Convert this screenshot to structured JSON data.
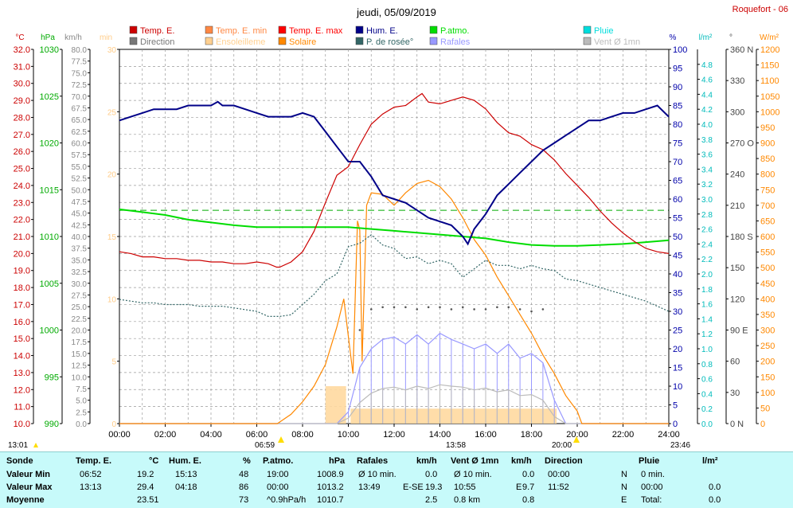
{
  "header": {
    "title": "jeudi, 05/09/2019",
    "station": "Roquefort - 06"
  },
  "legend": [
    {
      "label": "Temp. E.",
      "color": "#cc0000"
    },
    {
      "label": "Direction",
      "color": "#777777"
    },
    {
      "label": "Temp. E. min",
      "color": "#ff8844"
    },
    {
      "label": "Ensoleilleme",
      "color": "#ffd090"
    },
    {
      "label": "Temp. E. max",
      "color": "#ff0000"
    },
    {
      "label": "Solaire",
      "color": "#ff8800"
    },
    {
      "label": "Hum. E.",
      "color": "#000088"
    },
    {
      "label": "P. de rosée°",
      "color": "#336666"
    },
    {
      "label": "P.atmo.",
      "color": "#00dd00"
    },
    {
      "label": "Rafales",
      "color": "#9999ff"
    },
    {
      "label": "Pluie",
      "color": "#00dddd"
    },
    {
      "label": "Vent Ø 1mn",
      "color": "#bbbbbb"
    }
  ],
  "axes_units": {
    "temp": "°C",
    "pressure": "hPa",
    "wind": "km/h",
    "min": "min",
    "humidity": "%",
    "rain": "l/m²",
    "direction": "°",
    "solar": "W/m²"
  },
  "marker_labels": {
    "start": "13:01",
    "sunrise": "06:59",
    "noon": "13:58",
    "sunset": "20:00",
    "end": "23:46"
  },
  "chart_data": {
    "type": "line",
    "x_label_ticks": [
      "00:00",
      "02:00",
      "04:00",
      "06:00",
      "08:00",
      "10:00",
      "12:00",
      "14:00",
      "16:00",
      "18:00",
      "20:00",
      "22:00",
      "24:00"
    ],
    "x_range_hours": [
      0,
      24
    ],
    "axes": {
      "temp": {
        "range": [
          10,
          32
        ],
        "ticks": [
          "10.0",
          "11.0",
          "12.0",
          "13.0",
          "14.0",
          "15.0",
          "16.0",
          "17.0",
          "18.0",
          "19.0",
          "20.0",
          "21.0",
          "22.0",
          "23.0",
          "24.0",
          "25.0",
          "26.0",
          "27.0",
          "28.0",
          "29.0",
          "30.0",
          "31.0",
          "32.0"
        ],
        "color": "#cc0000"
      },
      "pressure": {
        "range": [
          990,
          1030
        ],
        "ticks": [
          "990",
          "995",
          "1000",
          "1005",
          "1010",
          "1015",
          "1020",
          "1025",
          "1030"
        ],
        "color": "#00aa00"
      },
      "wind": {
        "range": [
          0,
          80
        ],
        "ticks": [
          "0.0",
          "2.5",
          "5.0",
          "7.5",
          "10.0",
          "12.5",
          "15.0",
          "17.5",
          "20.0",
          "22.5",
          "25.0",
          "27.5",
          "30.0",
          "32.5",
          "35.0",
          "37.5",
          "40.0",
          "42.5",
          "45.0",
          "47.5",
          "50.0",
          "52.5",
          "55.0",
          "57.5",
          "60.0",
          "62.5",
          "65.0",
          "67.5",
          "70.0",
          "72.5",
          "75.0",
          "77.5",
          "80.0"
        ],
        "color": "#888888"
      },
      "minutes": {
        "range": [
          0,
          30
        ],
        "ticks": [
          "0",
          "5",
          "10",
          "15",
          "20",
          "25",
          "30"
        ],
        "color": "#ffcc88"
      },
      "humidity": {
        "range": [
          0,
          100
        ],
        "ticks": [
          "0",
          "5",
          "10",
          "15",
          "20",
          "25",
          "30",
          "35",
          "40",
          "45",
          "50",
          "55",
          "60",
          "65",
          "70",
          "75",
          "80",
          "85",
          "90",
          "95",
          "100"
        ],
        "color": "#0000aa"
      },
      "rain": {
        "range": [
          0,
          5
        ],
        "ticks": [
          "0.0",
          "0.2",
          "0.4",
          "0.6",
          "0.8",
          "1.0",
          "1.2",
          "1.4",
          "1.6",
          "1.8",
          "2.0",
          "2.2",
          "2.4",
          "2.6",
          "2.8",
          "3.0",
          "3.2",
          "3.4",
          "3.6",
          "3.8",
          "4.0",
          "4.2",
          "4.4",
          "4.6",
          "4.8"
        ],
        "color": "#00bbbb"
      },
      "direction": {
        "range": [
          0,
          360
        ],
        "ticks": [
          "0 N",
          "30",
          "60",
          "90 E",
          "120",
          "150",
          "180 S",
          "210",
          "240",
          "270 O",
          "300",
          "330",
          "360 N"
        ],
        "color": "#444444"
      },
      "solar": {
        "range": [
          0,
          1200
        ],
        "ticks": [
          "0",
          "50",
          "100",
          "150",
          "200",
          "250",
          "300",
          "350",
          "400",
          "450",
          "500",
          "550",
          "600",
          "650",
          "700",
          "750",
          "800",
          "850",
          "900",
          "950",
          "1000",
          "1050",
          "1100",
          "1150",
          "1200"
        ],
        "color": "#ff8800"
      }
    },
    "series": [
      {
        "name": "Temp. E.",
        "axis": "temp",
        "color": "#cc0000",
        "x": [
          0,
          0.5,
          1,
          1.5,
          2,
          2.5,
          3,
          3.5,
          4,
          4.5,
          5,
          5.5,
          6,
          6.5,
          6.87,
          7,
          7.5,
          8,
          8.5,
          9,
          9.5,
          10,
          10.5,
          11,
          11.5,
          12,
          12.5,
          13,
          13.22,
          13.5,
          14,
          14.5,
          15,
          15.5,
          16,
          16.5,
          17,
          17.5,
          18,
          18.5,
          19,
          19.5,
          20,
          20.5,
          21,
          21.5,
          22,
          22.5,
          23,
          23.5,
          24
        ],
        "y": [
          20.1,
          20.0,
          19.8,
          19.8,
          19.7,
          19.7,
          19.6,
          19.6,
          19.5,
          19.5,
          19.4,
          19.4,
          19.5,
          19.4,
          19.2,
          19.2,
          19.5,
          20.1,
          21.3,
          23.0,
          24.6,
          25.1,
          26.4,
          27.6,
          28.2,
          28.6,
          28.7,
          29.2,
          29.4,
          28.9,
          28.8,
          29.0,
          29.2,
          29.0,
          28.5,
          27.7,
          27.1,
          26.9,
          26.4,
          26.1,
          25.5,
          24.7,
          24.0,
          23.3,
          22.5,
          21.8,
          21.2,
          20.7,
          20.3,
          20.1,
          20.0
        ]
      },
      {
        "name": "Hum. E.",
        "axis": "humidity",
        "color": "#000088",
        "x": [
          0,
          0.5,
          1,
          1.5,
          2,
          2.5,
          3,
          3.5,
          4,
          4.3,
          4.5,
          5,
          5.5,
          6,
          6.5,
          7,
          7.5,
          8,
          8.5,
          9,
          9.5,
          10,
          10.5,
          11,
          11.5,
          12,
          12.5,
          13,
          13.5,
          14,
          14.5,
          15,
          15.22,
          15.5,
          16,
          16.5,
          17,
          17.5,
          18,
          18.5,
          19,
          19.5,
          20,
          20.5,
          21,
          21.5,
          22,
          22.5,
          23,
          23.5,
          24
        ],
        "y": [
          81,
          82,
          83,
          84,
          84,
          84,
          85,
          85,
          85,
          86,
          85,
          85,
          84,
          83,
          82,
          82,
          82,
          83,
          82,
          78,
          74,
          70,
          70,
          66,
          61,
          60,
          59,
          57,
          55,
          54,
          53,
          50,
          48,
          52,
          56,
          61,
          64,
          67,
          70,
          73,
          75,
          77,
          79,
          81,
          81,
          82,
          83,
          83,
          84,
          85,
          82
        ]
      },
      {
        "name": "P.atmo.",
        "axis": "pressure",
        "color": "#00dd00",
        "x": [
          0,
          1,
          2,
          3,
          4,
          5,
          6,
          7,
          8,
          9,
          10,
          11,
          12,
          13,
          14,
          15,
          16,
          17,
          18,
          19,
          20,
          21,
          22,
          23,
          24
        ],
        "y": [
          1012.9,
          1012.6,
          1012.3,
          1011.8,
          1011.5,
          1011.2,
          1011.0,
          1011.0,
          1011.0,
          1011.0,
          1011.0,
          1010.8,
          1010.6,
          1010.4,
          1010.2,
          1010.0,
          1009.8,
          1009.4,
          1009.1,
          1009.0,
          1009.0,
          1009.1,
          1009.2,
          1009.4,
          1009.6
        ]
      },
      {
        "name": "P. de rosée°",
        "axis": "temp",
        "color": "#336666",
        "x": [
          0,
          0.5,
          1,
          1.5,
          2,
          2.5,
          3,
          3.5,
          4,
          4.5,
          5,
          5.5,
          6,
          6.5,
          7,
          7.5,
          8,
          8.5,
          9,
          9.5,
          10,
          10.5,
          11,
          11.5,
          12,
          12.5,
          13,
          13.5,
          14,
          14.5,
          15,
          15.5,
          16,
          16.5,
          17,
          17.5,
          18,
          18.5,
          19,
          19.5,
          20,
          20.5,
          21,
          21.5,
          22,
          22.5,
          23,
          23.5,
          24
        ],
        "y": [
          17.3,
          17.2,
          17.1,
          17.1,
          17.0,
          17.0,
          17.0,
          16.9,
          16.9,
          16.9,
          16.8,
          16.7,
          16.6,
          16.3,
          16.3,
          16.4,
          17.0,
          17.6,
          18.4,
          18.8,
          20.4,
          20.6,
          21.1,
          20.5,
          20.3,
          19.7,
          19.8,
          19.4,
          19.6,
          19.4,
          18.6,
          19.1,
          19.6,
          19.3,
          19.3,
          19.1,
          19.3,
          19.1,
          19.0,
          18.5,
          18.4,
          18.2,
          18.0,
          17.8,
          17.6,
          17.4,
          17.2,
          16.9,
          16.6
        ]
      },
      {
        "name": "Solaire",
        "axis": "solar",
        "color": "#ff8800",
        "x": [
          0,
          6.9,
          7.5,
          8,
          8.5,
          9,
          9.5,
          9.8,
          10,
          10.2,
          10.4,
          10.5,
          10.6,
          10.8,
          11,
          11.5,
          12,
          12.5,
          13,
          13.5,
          14,
          14.5,
          15,
          15.5,
          16,
          16.5,
          17,
          17.5,
          18,
          18.5,
          19,
          19.5,
          20,
          20.2,
          24
        ],
        "y": [
          0,
          0,
          30,
          70,
          120,
          190,
          310,
          400,
          280,
          160,
          650,
          620,
          200,
          700,
          740,
          735,
          700,
          740,
          770,
          780,
          760,
          720,
          660,
          590,
          540,
          470,
          410,
          350,
          290,
          220,
          160,
          90,
          40,
          0,
          0
        ]
      },
      {
        "name": "Rafales",
        "axis": "wind",
        "color": "#9999ff",
        "x": [
          0,
          9.5,
          10,
          10.5,
          11,
          11.5,
          12,
          12.5,
          13,
          13.5,
          14,
          14.5,
          15,
          15.5,
          16,
          16.5,
          17,
          17.5,
          18,
          18.5,
          19,
          19.5,
          24
        ],
        "y": [
          0,
          0,
          2.5,
          12,
          16,
          18,
          18.5,
          17,
          19,
          17,
          19.3,
          18,
          17,
          16,
          17,
          15,
          17,
          14,
          15,
          13,
          5,
          0,
          0
        ]
      },
      {
        "name": "Vent Ø 1mn",
        "axis": "wind",
        "color": "#bbbbbb",
        "x": [
          0,
          9.5,
          10,
          10.5,
          11,
          11.5,
          12,
          12.5,
          13,
          13.5,
          14,
          14.5,
          15,
          15.5,
          16,
          16.5,
          17,
          17.5,
          18,
          18.5,
          19,
          19.5,
          24
        ],
        "y": [
          0,
          0,
          1.2,
          4.5,
          6.5,
          7.5,
          7.8,
          7.2,
          8.0,
          7.5,
          8.3,
          8.0,
          7.8,
          7.2,
          7.6,
          6.8,
          7.2,
          6.0,
          6.2,
          5.0,
          1.5,
          0,
          0
        ]
      }
    ],
    "direction_points": {
      "x": [
        10.5,
        11,
        11.5,
        12,
        12.5,
        13,
        13.5,
        14,
        14.5,
        15,
        15.5,
        16,
        16.5,
        17,
        17.5,
        18,
        18.5
      ],
      "y": [
        90,
        110,
        112,
        112,
        112,
        110,
        112,
        112,
        110,
        112,
        110,
        110,
        112,
        112,
        110,
        108,
        110
      ]
    },
    "sunshine_blocks": [
      {
        "start": 9.0,
        "end": 9.9,
        "minutes": 3
      },
      {
        "start": 10.1,
        "end": 19.1,
        "minutes": 1.2
      }
    ],
    "dashed_reference": {
      "axis": "pressure",
      "value": 1012.8,
      "color": "#00aa00"
    }
  },
  "stats": {
    "headers": {
      "sonde": "Sonde",
      "temp": "Temp. E.",
      "temp_unit": "°C",
      "hum": "Hum. E.",
      "hum_unit": "%",
      "patmo": "P.atmo.",
      "patmo_unit": "hPa",
      "rafales": "Rafales",
      "rafales_unit": "km/h",
      "vent": "Vent Ø 1mn",
      "vent_unit": "km/h",
      "direction": "Direction",
      "pluie": "Pluie",
      "pluie_unit": "l/m²"
    },
    "rows": [
      {
        "label": "Valeur Min",
        "temp_time": "06:52",
        "temp_val": "19.2",
        "hum_time": "15:13",
        "hum_val": "48",
        "patmo_time": "19:00",
        "patmo_val": "1008.9",
        "raf_time": "Ø 10 min.",
        "raf_dir": "",
        "raf_val": "0.0",
        "vent_time": "Ø 10 min.",
        "vent_dir": "",
        "vent_val": "0.0",
        "dir_time": "00:00",
        "dir_val": "N",
        "pluie_time": "0 min.",
        "pluie_val": ""
      },
      {
        "label": "Valeur Max",
        "temp_time": "13:13",
        "temp_val": "29.4",
        "hum_time": "04:18",
        "hum_val": "86",
        "patmo_time": "00:00",
        "patmo_val": "1013.2",
        "raf_time": "13:49",
        "raf_dir": "E-SE",
        "raf_val": "19.3",
        "vent_time": "10:55",
        "vent_dir": "E",
        "vent_val": "9.7",
        "dir_time": "11:52",
        "dir_val": "N",
        "pluie_time": "00:00",
        "pluie_val": "0.0"
      },
      {
        "label": "Moyenne",
        "temp_time": "",
        "temp_val": "23.51",
        "hum_time": "",
        "hum_val": "73",
        "patmo_time": "^0.9hPa/h",
        "patmo_val": "1010.7",
        "raf_time": "",
        "raf_dir": "",
        "raf_val": "2.5",
        "vent_time": "0.8 km",
        "vent_dir": "",
        "vent_val": "0.8",
        "dir_time": "",
        "dir_val": "E",
        "pluie_time": "Total:",
        "pluie_val": "0.0"
      }
    ]
  }
}
